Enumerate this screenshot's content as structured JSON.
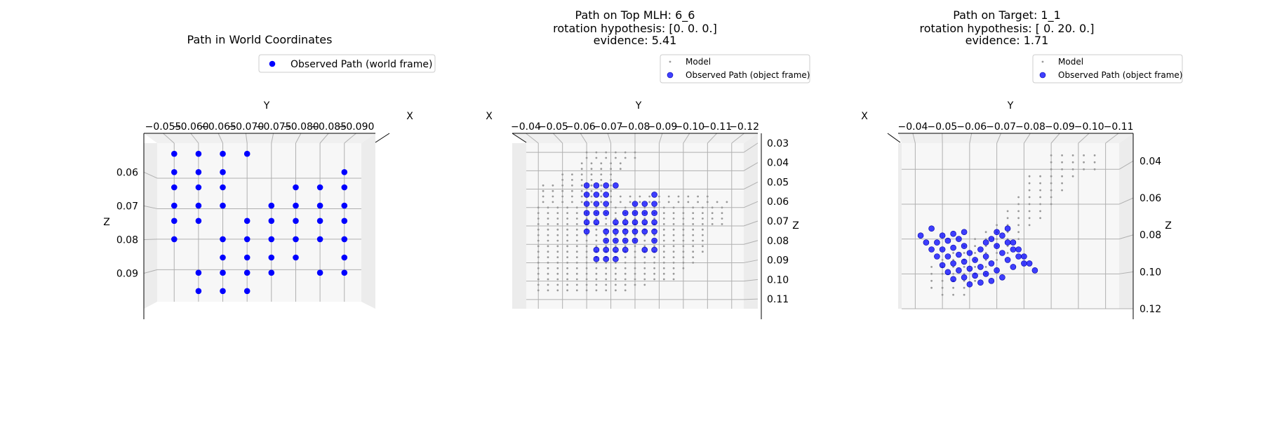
{
  "figure": {
    "background": "#ffffff",
    "pane_color": "#f2f2f2",
    "grid_color": "#b0b0b0",
    "path_color": "#0000ff",
    "model_color": "#999999"
  },
  "chart_data": [
    {
      "type": "scatter",
      "projection": "3d",
      "title": "Path in World Coordinates",
      "y_axis_label": "Y",
      "x_axis_label": "X",
      "z_axis_label": "Z",
      "y_ticks": [
        "−0.055",
        "−0.060",
        "−0.065",
        "−0.070",
        "−0.075",
        "−0.080",
        "−0.085",
        "−0.090"
      ],
      "z_ticks": [
        "0.06",
        "0.07",
        "0.08",
        "0.09"
      ],
      "ylim": [
        -0.0515,
        -0.0935
      ],
      "zlim": [
        0.0485,
        0.1005
      ],
      "z_ticks_side": "left",
      "grid": true,
      "legend": {
        "placement": "top-right",
        "entries": [
          {
            "label": "Observed Path (world frame)",
            "marker": "dot"
          }
        ]
      },
      "series": [
        {
          "name": "Observed Path (world frame)",
          "points": [
            [
              -0.055,
              0.052
            ],
            [
              -0.06,
              0.052
            ],
            [
              -0.065,
              0.052
            ],
            [
              -0.07,
              0.052
            ],
            [
              -0.055,
              0.058
            ],
            [
              -0.06,
              0.058
            ],
            [
              -0.065,
              0.058
            ],
            [
              -0.09,
              0.058
            ],
            [
              -0.055,
              0.063
            ],
            [
              -0.06,
              0.063
            ],
            [
              -0.065,
              0.063
            ],
            [
              -0.08,
              0.063
            ],
            [
              -0.085,
              0.063
            ],
            [
              -0.09,
              0.063
            ],
            [
              -0.055,
              0.069
            ],
            [
              -0.06,
              0.069
            ],
            [
              -0.065,
              0.069
            ],
            [
              -0.075,
              0.069
            ],
            [
              -0.08,
              0.069
            ],
            [
              -0.085,
              0.069
            ],
            [
              -0.09,
              0.069
            ],
            [
              -0.055,
              0.074
            ],
            [
              -0.06,
              0.074
            ],
            [
              -0.07,
              0.074
            ],
            [
              -0.075,
              0.074
            ],
            [
              -0.08,
              0.074
            ],
            [
              -0.085,
              0.074
            ],
            [
              -0.09,
              0.074
            ],
            [
              -0.055,
              0.08
            ],
            [
              -0.065,
              0.08
            ],
            [
              -0.07,
              0.08
            ],
            [
              -0.075,
              0.08
            ],
            [
              -0.08,
              0.08
            ],
            [
              -0.085,
              0.08
            ],
            [
              -0.09,
              0.08
            ],
            [
              -0.065,
              0.086
            ],
            [
              -0.07,
              0.086
            ],
            [
              -0.075,
              0.086
            ],
            [
              -0.08,
              0.086
            ],
            [
              -0.09,
              0.086
            ],
            [
              -0.06,
              0.091
            ],
            [
              -0.065,
              0.091
            ],
            [
              -0.07,
              0.091
            ],
            [
              -0.075,
              0.091
            ],
            [
              -0.085,
              0.091
            ],
            [
              -0.09,
              0.091
            ],
            [
              -0.06,
              0.097
            ],
            [
              -0.065,
              0.097
            ],
            [
              -0.07,
              0.097
            ]
          ]
        }
      ]
    },
    {
      "type": "scatter",
      "projection": "3d",
      "title": "Path on Top MLH: 6_6",
      "subtitle_lines": [
        "rotation hypothesis: [0. 0. 0.]",
        "evidence: 5.41"
      ],
      "y_axis_label": "Y",
      "x_axis_label": "X",
      "z_axis_label": "Z",
      "y_ticks": [
        "−0.04",
        "−0.05",
        "−0.06",
        "−0.07",
        "−0.08",
        "−0.09",
        "−0.10",
        "−0.11",
        "−0.12"
      ],
      "z_ticks": [
        "0.03",
        "0.04",
        "0.05",
        "0.06",
        "0.07",
        "0.08",
        "0.09",
        "0.10",
        "0.11"
      ],
      "ylim": [
        -0.035,
        -0.125
      ],
      "zlim": [
        0.025,
        0.115
      ],
      "z_ticks_side": "right",
      "grid": true,
      "legend": {
        "placement": "top-right",
        "entries": [
          {
            "label": "Model",
            "marker": "small-dot"
          },
          {
            "label": "Observed Path (object frame)",
            "marker": "dot"
          }
        ]
      },
      "series": [
        {
          "name": "Model",
          "grid_spacing": [
            0.004,
            0.003
          ],
          "bands": [
            [
              0.03,
              -0.06,
              -0.08
            ],
            [
              0.033,
              -0.06,
              -0.08
            ],
            [
              0.036,
              -0.058,
              -0.074
            ],
            [
              0.039,
              -0.058,
              -0.074
            ],
            [
              0.042,
              -0.05,
              -0.07
            ],
            [
              0.045,
              -0.05,
              -0.07
            ],
            [
              0.048,
              -0.042,
              -0.07
            ],
            [
              0.051,
              -0.042,
              -0.07
            ],
            [
              0.054,
              -0.042,
              -0.112
            ],
            [
              0.057,
              -0.042,
              -0.118
            ],
            [
              0.06,
              -0.04,
              -0.118
            ],
            [
              0.063,
              -0.04,
              -0.118
            ],
            [
              0.066,
              -0.04,
              -0.118
            ],
            [
              0.069,
              -0.04,
              -0.118
            ],
            [
              0.072,
              -0.04,
              -0.108
            ],
            [
              0.075,
              -0.04,
              -0.108
            ],
            [
              0.078,
              -0.04,
              -0.108
            ],
            [
              0.081,
              -0.04,
              -0.108
            ],
            [
              0.084,
              -0.04,
              -0.108
            ],
            [
              0.087,
              -0.04,
              -0.104
            ],
            [
              0.09,
              -0.04,
              -0.104
            ],
            [
              0.093,
              -0.04,
              -0.1
            ],
            [
              0.096,
              -0.04,
              -0.096
            ],
            [
              0.099,
              -0.04,
              -0.096
            ],
            [
              0.102,
              -0.04,
              -0.086
            ],
            [
              0.105,
              -0.04,
              -0.076
            ]
          ]
        },
        {
          "name": "Observed Path (object frame)",
          "points": [
            [
              -0.06,
              0.048
            ],
            [
              -0.064,
              0.048
            ],
            [
              -0.068,
              0.048
            ],
            [
              -0.072,
              0.048
            ],
            [
              -0.06,
              0.053
            ],
            [
              -0.064,
              0.053
            ],
            [
              -0.068,
              0.053
            ],
            [
              -0.088,
              0.053
            ],
            [
              -0.06,
              0.058
            ],
            [
              -0.064,
              0.058
            ],
            [
              -0.068,
              0.058
            ],
            [
              -0.08,
              0.058
            ],
            [
              -0.084,
              0.058
            ],
            [
              -0.088,
              0.058
            ],
            [
              -0.06,
              0.063
            ],
            [
              -0.064,
              0.063
            ],
            [
              -0.068,
              0.063
            ],
            [
              -0.076,
              0.063
            ],
            [
              -0.08,
              0.063
            ],
            [
              -0.084,
              0.063
            ],
            [
              -0.088,
              0.063
            ],
            [
              -0.06,
              0.068
            ],
            [
              -0.064,
              0.068
            ],
            [
              -0.072,
              0.068
            ],
            [
              -0.076,
              0.068
            ],
            [
              -0.08,
              0.068
            ],
            [
              -0.084,
              0.068
            ],
            [
              -0.088,
              0.068
            ],
            [
              -0.06,
              0.073
            ],
            [
              -0.068,
              0.073
            ],
            [
              -0.072,
              0.073
            ],
            [
              -0.076,
              0.073
            ],
            [
              -0.08,
              0.073
            ],
            [
              -0.084,
              0.073
            ],
            [
              -0.088,
              0.073
            ],
            [
              -0.068,
              0.078
            ],
            [
              -0.072,
              0.078
            ],
            [
              -0.076,
              0.078
            ],
            [
              -0.08,
              0.078
            ],
            [
              -0.088,
              0.078
            ],
            [
              -0.064,
              0.083
            ],
            [
              -0.068,
              0.083
            ],
            [
              -0.072,
              0.083
            ],
            [
              -0.076,
              0.083
            ],
            [
              -0.084,
              0.083
            ],
            [
              -0.088,
              0.083
            ],
            [
              -0.064,
              0.088
            ],
            [
              -0.068,
              0.088
            ],
            [
              -0.072,
              0.088
            ]
          ]
        }
      ]
    },
    {
      "type": "scatter",
      "projection": "3d",
      "title": "Path on Target: 1_1",
      "subtitle_lines": [
        "rotation hypothesis: [ 0. 20.  0.]",
        "evidence: 1.71"
      ],
      "y_axis_label": "Y",
      "x_axis_label": "X",
      "z_axis_label": "Z",
      "y_ticks": [
        "−0.04",
        "−0.05",
        "−0.06",
        "−0.07",
        "−0.08",
        "−0.09",
        "−0.10",
        "−0.11"
      ],
      "z_ticks": [
        "0.04",
        "0.06",
        "0.08",
        "0.10",
        "0.12"
      ],
      "ylim": [
        -0.035,
        -0.115
      ],
      "zlim": [
        0.025,
        0.12
      ],
      "z_ticks_side": "right",
      "grid": true,
      "legend": {
        "placement": "top-right",
        "entries": [
          {
            "label": "Model",
            "marker": "small-dot"
          },
          {
            "label": "Observed Path (object frame)",
            "marker": "dot"
          }
        ]
      },
      "series": [
        {
          "name": "Model",
          "grid_spacing": [
            0.004,
            0.004
          ],
          "bands": [
            [
              0.032,
              -0.09,
              -0.106
            ],
            [
              0.036,
              -0.09,
              -0.106
            ],
            [
              0.04,
              -0.09,
              -0.106
            ],
            [
              0.044,
              -0.082,
              -0.098
            ],
            [
              0.048,
              -0.082,
              -0.094
            ],
            [
              0.052,
              -0.082,
              -0.094
            ],
            [
              0.056,
              -0.078,
              -0.09
            ],
            [
              0.06,
              -0.078,
              -0.09
            ],
            [
              0.064,
              -0.074,
              -0.086
            ],
            [
              0.068,
              -0.074,
              -0.086
            ],
            [
              0.072,
              -0.07,
              -0.082
            ],
            [
              0.076,
              -0.066,
              -0.078
            ],
            [
              0.08,
              -0.062,
              -0.078
            ],
            [
              0.084,
              -0.058,
              -0.074
            ],
            [
              0.088,
              -0.054,
              -0.074
            ],
            [
              0.092,
              -0.05,
              -0.07
            ],
            [
              0.096,
              -0.046,
              -0.066
            ],
            [
              0.1,
              -0.046,
              -0.066
            ],
            [
              0.104,
              -0.046,
              -0.062
            ],
            [
              0.108,
              -0.046,
              -0.058
            ],
            [
              0.112,
              -0.05,
              -0.058
            ]
          ]
        },
        {
          "name": "Observed Path (object frame)",
          "points": [
            [
              -0.046,
              0.074
            ],
            [
              -0.042,
              0.078
            ],
            [
              -0.044,
              0.082
            ],
            [
              -0.046,
              0.086
            ],
            [
              -0.048,
              0.09
            ],
            [
              -0.05,
              0.095
            ],
            [
              -0.052,
              0.099
            ],
            [
              -0.054,
              0.103
            ],
            [
              -0.05,
              0.078
            ],
            [
              -0.048,
              0.082
            ],
            [
              -0.05,
              0.086
            ],
            [
              -0.052,
              0.09
            ],
            [
              -0.054,
              0.094
            ],
            [
              -0.056,
              0.098
            ],
            [
              -0.058,
              0.102
            ],
            [
              -0.06,
              0.106
            ],
            [
              -0.054,
              0.077
            ],
            [
              -0.052,
              0.081
            ],
            [
              -0.054,
              0.085
            ],
            [
              -0.056,
              0.089
            ],
            [
              -0.058,
              0.093
            ],
            [
              -0.06,
              0.097
            ],
            [
              -0.062,
              0.101
            ],
            [
              -0.064,
              0.105
            ],
            [
              -0.058,
              0.076
            ],
            [
              -0.056,
              0.08
            ],
            [
              -0.058,
              0.084
            ],
            [
              -0.06,
              0.088
            ],
            [
              -0.062,
              0.092
            ],
            [
              -0.064,
              0.096
            ],
            [
              -0.066,
              0.1
            ],
            [
              -0.068,
              0.104
            ],
            [
              -0.066,
              0.082
            ],
            [
              -0.064,
              0.086
            ],
            [
              -0.066,
              0.09
            ],
            [
              -0.068,
              0.094
            ],
            [
              -0.07,
              0.098
            ],
            [
              -0.072,
              0.102
            ],
            [
              -0.07,
              0.076
            ],
            [
              -0.068,
              0.08
            ],
            [
              -0.07,
              0.084
            ],
            [
              -0.072,
              0.088
            ],
            [
              -0.074,
              0.092
            ],
            [
              -0.076,
              0.096
            ],
            [
              -0.074,
              0.074
            ],
            [
              -0.072,
              0.078
            ],
            [
              -0.074,
              0.082
            ],
            [
              -0.076,
              0.086
            ],
            [
              -0.078,
              0.09
            ],
            [
              -0.08,
              0.094
            ],
            [
              -0.076,
              0.082
            ],
            [
              -0.078,
              0.086
            ],
            [
              -0.08,
              0.09
            ],
            [
              -0.082,
              0.094
            ],
            [
              -0.084,
              0.098
            ]
          ]
        }
      ]
    }
  ]
}
